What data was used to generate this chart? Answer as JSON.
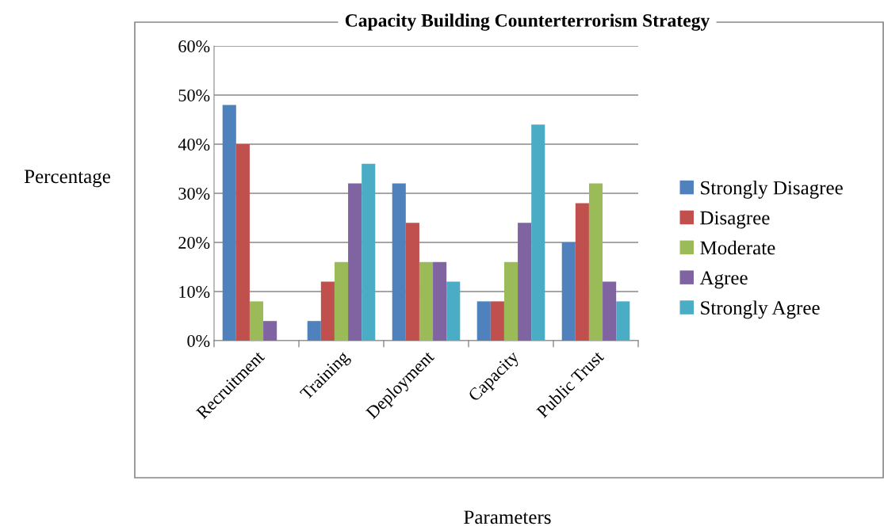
{
  "chart_data": {
    "type": "bar",
    "title": "Capacity Building Counterterrorism Strategy",
    "xlabel": "Parameters",
    "ylabel": "Percentage",
    "categories": [
      "Recruitment",
      "Training",
      "Deployment",
      "Capacity",
      "Public Trust"
    ],
    "series": [
      {
        "name": "Strongly Disagree",
        "color": "#4f81bd",
        "values": [
          48,
          4,
          32,
          8,
          20
        ]
      },
      {
        "name": "Disagree",
        "color": "#c0504d",
        "values": [
          40,
          12,
          24,
          8,
          28
        ]
      },
      {
        "name": "Moderate",
        "color": "#9bbb59",
        "values": [
          8,
          16,
          16,
          16,
          32
        ]
      },
      {
        "name": "Agree",
        "color": "#8064a2",
        "values": [
          4,
          32,
          16,
          24,
          12
        ]
      },
      {
        "name": "Strongly Agree",
        "color": "#4bacc6",
        "values": [
          0,
          36,
          12,
          44,
          8
        ]
      }
    ],
    "ylim": [
      0,
      60
    ],
    "yticks": [
      {
        "value": 0,
        "label": "0%"
      },
      {
        "value": 10,
        "label": "10%"
      },
      {
        "value": 20,
        "label": "20%"
      },
      {
        "value": 30,
        "label": "30%"
      },
      {
        "value": 40,
        "label": "40%"
      },
      {
        "value": 50,
        "label": "50%"
      },
      {
        "value": 60,
        "label": "60%"
      }
    ],
    "grid": "y",
    "legend": "right"
  }
}
